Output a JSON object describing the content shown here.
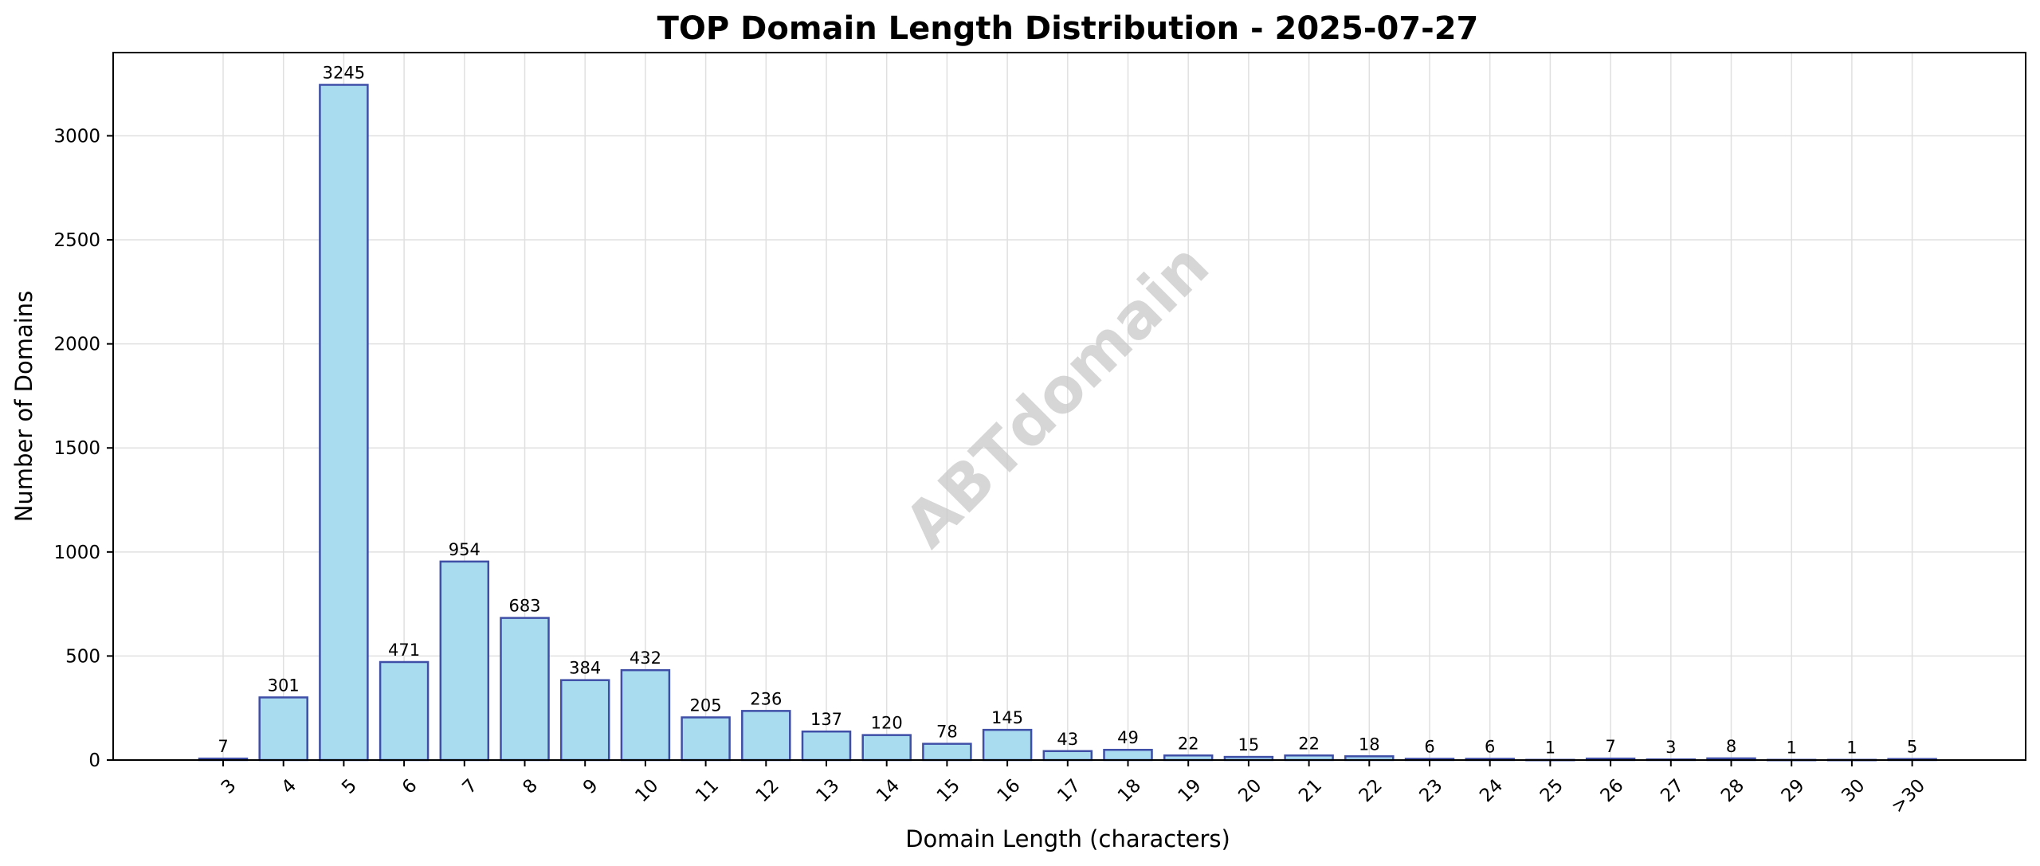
{
  "chart_data": {
    "type": "bar",
    "title": "TOP Domain Length Distribution - 2025-07-27",
    "xlabel": "Domain Length (characters)",
    "ylabel": "Number of Domains",
    "categories": [
      "3",
      "4",
      "5",
      "6",
      "7",
      "8",
      "9",
      "10",
      "11",
      "12",
      "13",
      "14",
      "15",
      "16",
      "17",
      "18",
      "19",
      "20",
      "21",
      "22",
      "23",
      "24",
      "25",
      "26",
      "27",
      "28",
      "29",
      "30",
      ">30"
    ],
    "values": [
      7,
      301,
      3245,
      471,
      954,
      683,
      384,
      432,
      205,
      236,
      137,
      120,
      78,
      145,
      43,
      49,
      22,
      15,
      22,
      18,
      6,
      6,
      1,
      7,
      3,
      8,
      1,
      1,
      5
    ],
    "ylim": [
      0,
      3400
    ],
    "yticks": [
      0,
      500,
      1000,
      1500,
      2000,
      2500,
      3000
    ],
    "grid": true,
    "data_labels": true,
    "watermark": "ABTdomain",
    "colors": {
      "bar_fill": "#aadcf0",
      "bar_edge": "#3f4fa8",
      "watermark": "#c8c8c8"
    }
  }
}
